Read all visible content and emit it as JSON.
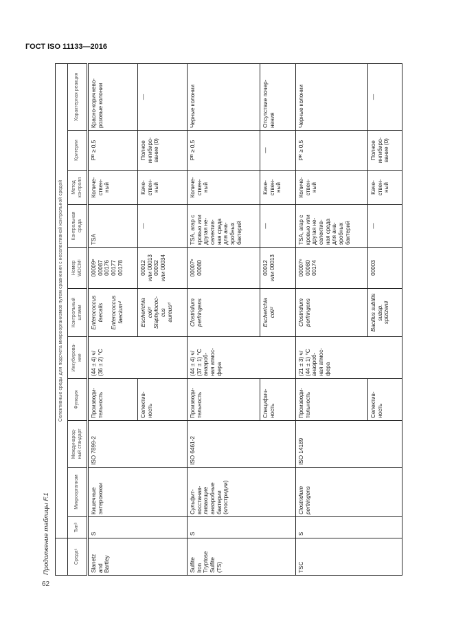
{
  "doc_title": "ГОСТ ISO 11133—2016",
  "page_number": "62",
  "caption": "Продолжение таблицы F.1",
  "table": {
    "supra_header": "Селективные среды для подсчета микроорганизмов путем сравнения с неселективной контрольной средой",
    "headers": [
      "Средаᵃ",
      "Типᵇ",
      "Микроорганизм",
      "Международ-\nный стандарт",
      "Функция",
      "Инкубирова-\nние",
      "Контрольный\nштамм",
      "Номер\nWDCMᶜ",
      "Контрольная\nсреда",
      "Метод\nконтроля",
      "Критерии",
      "Характерная реакция"
    ],
    "groups": [
      {
        "medium": "Slanetz\nand\nBartley",
        "type": "S",
        "organism": "Кишечные\nэнтерококки",
        "standard": "ISO 7899-2",
        "incubation": "(44 ± 4) ч/\n(36 ± 2) °C",
        "rows": [
          {
            "function": "Производи-\nтельность",
            "strain": "Enterococcus\nfaecalis\n\nEnterococcus\nfaeciumᵈ",
            "wdcm": "00009ᵉ\n00087\n00176\n00177\n00178",
            "control_medium": "TSA",
            "method": "Количе-\nствен-\nный",
            "criteria": "Pᴿ ≥ 0,5",
            "reaction": "Красно-коричнево-\nрозовые колонии"
          },
          {
            "function": "Селектив-\nность",
            "strain": "Escherichia\ncoliᵈ\nStaphylococ-\ncus\naureusᵈ",
            "wdcm": "00012\nили 00013\n00032\nили 00034",
            "control_medium": "—",
            "method": "Каче-\nствен-\nный",
            "criteria": "Полное\nингибиро-\nвание (0)",
            "reaction": "—"
          }
        ]
      },
      {
        "medium": "Sulfite\nIron\nTryptose\nSulfite\n(TS)",
        "type": "S",
        "organism": "Сульфит-\nвосстанав-\nливающие\nанаэробные\nбактерии\n(клостридии)",
        "standard": "ISO 6461-2",
        "incubation": "(44 ± 4) ч/\n(37 ± 1) °C\nанаэроб-\nная атмос-\nфера",
        "rows": [
          {
            "function": "Производи-\nтельность",
            "strain": "Clostridium\nperfringens",
            "wdcm": "00007ᵉ\n00080",
            "control_medium": "TSA, агар с\nкровью или\nдругая не-\nселектив-\nная среда\nдля ана-\nэробных\nбактерий",
            "method": "Количе-\nствен-\nный",
            "criteria": "Pᴿ ≥ 0,5",
            "reaction": "Черные колонии"
          },
          {
            "function": "Специфич-\nность",
            "strain": "Escherichia\ncoliᵈ",
            "wdcm": "00012\nили 00013",
            "control_medium": "—",
            "method": "Каче-\nствен-\nный",
            "criteria": "—",
            "reaction": "Отсутствие почер-\nнения"
          }
        ]
      },
      {
        "medium": "TSC",
        "type": "S",
        "organism": "Clostridium\nperfringens",
        "standard": "ISO 14189",
        "incubation": "(21 ± 3) ч/\n(44 ± 1) °C\nанаэроб-\nная атмос-\nфера",
        "rows": [
          {
            "function": "Производи-\nтельность",
            "strain": "Clostridium\nperfringens",
            "wdcm": "00007ᵉ\n00080\n00174",
            "control_medium": "TSA, агар с\nкровью или\nдругая не-\nселектив-\nная среда\nдля ана-\nэробных\nбактерий",
            "method": "Количе-\nствен-\nный",
            "criteria": "Pᴿ ≥ 0,5",
            "reaction": "Черные колонии"
          },
          {
            "function": "Селектив-\nность",
            "strain": "Bacillus subtilis\nsubsp.\nspizizenii",
            "wdcm": "00003",
            "control_medium": "—",
            "method": "Каче-\nствен-\nный",
            "criteria": "Полное\nингибиро-\nвание (0)",
            "reaction": "—"
          }
        ]
      }
    ]
  }
}
